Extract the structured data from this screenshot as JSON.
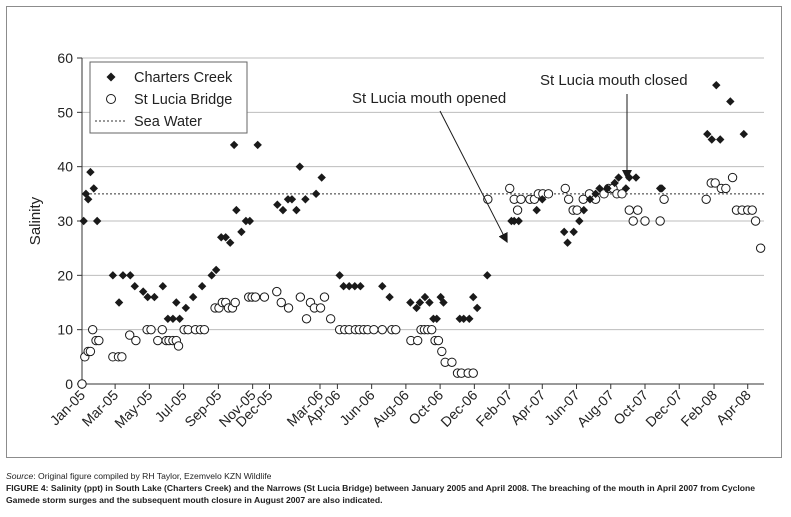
{
  "chart_data": {
    "type": "scatter",
    "ylabel": "Salinity",
    "ylim": [
      0,
      60
    ],
    "yticks": [
      0,
      10,
      20,
      30,
      40,
      50,
      60
    ],
    "xlim": [
      "2005-01-01",
      "2008-04-30"
    ],
    "xticks": [
      "2005-01-01",
      "2005-03-01",
      "2005-05-01",
      "2005-07-01",
      "2005-09-01",
      "2005-11-01",
      "2005-12-01",
      "2006-03-01",
      "2006-04-01",
      "2006-06-01",
      "2006-08-01",
      "2006-10-01",
      "2006-12-01",
      "2007-02-01",
      "2007-04-01",
      "2007-06-01",
      "2007-08-01",
      "2007-10-01",
      "2007-12-01",
      "2008-02-01",
      "2008-04-01"
    ],
    "xticklabels": [
      "Jan-05",
      "Mar-05",
      "May-05",
      "Jul-05",
      "Sep-05",
      "Nov-05",
      "Dec-05",
      "Mar-06",
      "Apr-06",
      "Jun-06",
      "Aug-06",
      "Oct-06",
      "Dec-06",
      "Feb-07",
      "Apr-07",
      "Jun-07",
      "Aug-07",
      "Oct-07",
      "Dec-07",
      "Feb-08",
      "Apr-08"
    ],
    "grid": "horizontal",
    "legend_position": "top-left",
    "series": [
      {
        "name": "Charters Creek",
        "marker": "diamond",
        "color": "#1a1a1a",
        "points": [
          [
            "2005-01-04",
            30
          ],
          [
            "2005-01-08",
            35
          ],
          [
            "2005-01-12",
            34
          ],
          [
            "2005-01-16",
            39
          ],
          [
            "2005-01-22",
            36
          ],
          [
            "2005-01-28",
            30
          ],
          [
            "2005-02-25",
            20
          ],
          [
            "2005-03-08",
            15
          ],
          [
            "2005-03-15",
            20
          ],
          [
            "2005-03-28",
            20
          ],
          [
            "2005-04-05",
            18
          ],
          [
            "2005-04-20",
            17
          ],
          [
            "2005-04-28",
            16
          ],
          [
            "2005-05-10",
            16
          ],
          [
            "2005-05-25",
            18
          ],
          [
            "2005-06-03",
            12
          ],
          [
            "2005-06-12",
            12
          ],
          [
            "2005-06-18",
            15
          ],
          [
            "2005-06-24",
            12
          ],
          [
            "2005-07-05",
            14
          ],
          [
            "2005-07-18",
            16
          ],
          [
            "2005-08-03",
            18
          ],
          [
            "2005-08-20",
            20
          ],
          [
            "2005-08-28",
            21
          ],
          [
            "2005-09-06",
            27
          ],
          [
            "2005-09-14",
            27
          ],
          [
            "2005-09-22",
            26
          ],
          [
            "2005-09-29",
            44
          ],
          [
            "2005-10-03",
            32
          ],
          [
            "2005-10-12",
            28
          ],
          [
            "2005-10-20",
            30
          ],
          [
            "2005-10-27",
            30
          ],
          [
            "2005-11-10",
            44
          ],
          [
            "2005-12-15",
            33
          ],
          [
            "2005-12-25",
            32
          ],
          [
            "2006-01-03",
            34
          ],
          [
            "2006-01-10",
            34
          ],
          [
            "2006-01-18",
            32
          ],
          [
            "2006-01-24",
            40
          ],
          [
            "2006-02-03",
            34
          ],
          [
            "2006-02-22",
            35
          ],
          [
            "2006-03-04",
            38
          ],
          [
            "2006-04-05",
            20
          ],
          [
            "2006-04-12",
            18
          ],
          [
            "2006-04-22",
            18
          ],
          [
            "2006-05-02",
            18
          ],
          [
            "2006-05-12",
            18
          ],
          [
            "2006-06-20",
            18
          ],
          [
            "2006-07-03",
            16
          ],
          [
            "2006-08-09",
            15
          ],
          [
            "2006-08-20",
            14
          ],
          [
            "2006-08-26",
            15
          ],
          [
            "2006-09-04",
            16
          ],
          [
            "2006-09-12",
            15
          ],
          [
            "2006-09-19",
            12
          ],
          [
            "2006-09-25",
            12
          ],
          [
            "2006-10-02",
            16
          ],
          [
            "2006-10-07",
            15
          ],
          [
            "2006-11-05",
            12
          ],
          [
            "2006-11-12",
            12
          ],
          [
            "2006-11-22",
            12
          ],
          [
            "2006-11-29",
            16
          ],
          [
            "2006-12-06",
            14
          ],
          [
            "2006-12-24",
            20
          ],
          [
            "2007-02-05",
            30
          ],
          [
            "2007-02-10",
            30
          ],
          [
            "2007-02-18",
            30
          ],
          [
            "2007-03-22",
            32
          ],
          [
            "2007-04-01",
            34
          ],
          [
            "2007-05-10",
            28
          ],
          [
            "2007-05-16",
            26
          ],
          [
            "2007-05-27",
            28
          ],
          [
            "2007-06-06",
            30
          ],
          [
            "2007-06-14",
            32
          ],
          [
            "2007-06-25",
            34
          ],
          [
            "2007-07-05",
            35
          ],
          [
            "2007-07-12",
            36
          ],
          [
            "2007-07-26",
            36
          ],
          [
            "2007-08-08",
            37
          ],
          [
            "2007-08-15",
            38
          ],
          [
            "2007-08-28",
            36
          ],
          [
            "2007-09-03",
            38
          ],
          [
            "2007-09-15",
            38
          ],
          [
            "2007-10-28",
            36
          ],
          [
            "2007-10-31",
            36
          ],
          [
            "2008-01-20",
            46
          ],
          [
            "2008-01-28",
            45
          ],
          [
            "2008-02-05",
            55
          ],
          [
            "2008-02-12",
            45
          ],
          [
            "2008-03-01",
            52
          ],
          [
            "2008-03-25",
            46
          ]
        ]
      },
      {
        "name": "St Lucia Bridge",
        "marker": "open-circle",
        "color": "#1a1a1a",
        "points": [
          [
            "2005-01-01",
            0
          ],
          [
            "2005-01-06",
            5
          ],
          [
            "2005-01-12",
            6
          ],
          [
            "2005-01-16",
            6
          ],
          [
            "2005-01-20",
            10
          ],
          [
            "2005-01-26",
            8
          ],
          [
            "2005-01-31",
            8
          ],
          [
            "2005-02-25",
            5
          ],
          [
            "2005-03-07",
            5
          ],
          [
            "2005-03-13",
            5
          ],
          [
            "2005-03-27",
            9
          ],
          [
            "2005-04-07",
            8
          ],
          [
            "2005-04-27",
            10
          ],
          [
            "2005-05-04",
            10
          ],
          [
            "2005-05-16",
            8
          ],
          [
            "2005-05-24",
            10
          ],
          [
            "2005-05-31",
            8
          ],
          [
            "2005-06-05",
            8
          ],
          [
            "2005-06-12",
            8
          ],
          [
            "2005-06-18",
            8
          ],
          [
            "2005-06-22",
            7
          ],
          [
            "2005-07-02",
            10
          ],
          [
            "2005-07-09",
            10
          ],
          [
            "2005-07-22",
            10
          ],
          [
            "2005-07-31",
            10
          ],
          [
            "2005-08-07",
            10
          ],
          [
            "2005-08-26",
            14
          ],
          [
            "2005-09-02",
            14
          ],
          [
            "2005-09-08",
            15
          ],
          [
            "2005-09-14",
            15
          ],
          [
            "2005-09-19",
            14
          ],
          [
            "2005-09-26",
            14
          ],
          [
            "2005-10-01",
            15
          ],
          [
            "2005-10-25",
            16
          ],
          [
            "2005-10-31",
            16
          ],
          [
            "2005-11-06",
            16
          ],
          [
            "2005-11-22",
            16
          ],
          [
            "2005-12-14",
            17
          ],
          [
            "2005-12-22",
            15
          ],
          [
            "2006-01-04",
            14
          ],
          [
            "2006-01-25",
            16
          ],
          [
            "2006-02-05",
            12
          ],
          [
            "2006-02-12",
            15
          ],
          [
            "2006-02-19",
            14
          ],
          [
            "2006-03-02",
            14
          ],
          [
            "2006-03-09",
            16
          ],
          [
            "2006-03-20",
            12
          ],
          [
            "2006-04-05",
            10
          ],
          [
            "2006-04-14",
            10
          ],
          [
            "2006-04-22",
            10
          ],
          [
            "2006-05-03",
            10
          ],
          [
            "2006-05-10",
            10
          ],
          [
            "2006-05-18",
            10
          ],
          [
            "2006-05-25",
            10
          ],
          [
            "2006-06-05",
            10
          ],
          [
            "2006-06-20",
            10
          ],
          [
            "2006-07-07",
            10
          ],
          [
            "2006-07-14",
            10
          ],
          [
            "2006-08-10",
            8
          ],
          [
            "2006-08-22",
            8
          ],
          [
            "2006-08-28",
            10
          ],
          [
            "2006-09-03",
            10
          ],
          [
            "2006-09-09",
            10
          ],
          [
            "2006-09-16",
            10
          ],
          [
            "2006-09-22",
            8
          ],
          [
            "2006-09-28",
            8
          ],
          [
            "2006-10-04",
            6
          ],
          [
            "2006-10-10",
            4
          ],
          [
            "2006-10-22",
            4
          ],
          [
            "2006-11-01",
            2
          ],
          [
            "2006-11-08",
            2
          ],
          [
            "2006-11-20",
            2
          ],
          [
            "2006-11-29",
            2
          ],
          [
            "2006-12-25",
            34
          ],
          [
            "2007-02-02",
            36
          ],
          [
            "2007-02-10",
            34
          ],
          [
            "2007-02-16",
            32
          ],
          [
            "2007-02-22",
            34
          ],
          [
            "2007-03-10",
            34
          ],
          [
            "2007-03-18",
            34
          ],
          [
            "2007-03-25",
            35
          ],
          [
            "2007-04-02",
            35
          ],
          [
            "2007-04-12",
            35
          ],
          [
            "2007-05-12",
            36
          ],
          [
            "2007-05-18",
            34
          ],
          [
            "2007-05-26",
            32
          ],
          [
            "2007-06-02",
            32
          ],
          [
            "2007-06-13",
            34
          ],
          [
            "2007-06-24",
            35
          ],
          [
            "2007-07-05",
            34
          ],
          [
            "2007-07-20",
            35
          ],
          [
            "2007-07-28",
            36
          ],
          [
            "2007-08-05",
            36
          ],
          [
            "2007-08-12",
            35
          ],
          [
            "2007-08-21",
            35
          ],
          [
            "2007-09-03",
            32
          ],
          [
            "2007-09-10",
            30
          ],
          [
            "2007-09-18",
            32
          ],
          [
            "2007-10-01",
            30
          ],
          [
            "2007-10-28",
            30
          ],
          [
            "2007-11-04",
            34
          ],
          [
            "2008-01-18",
            34
          ],
          [
            "2008-01-27",
            37
          ],
          [
            "2008-02-03",
            37
          ],
          [
            "2008-02-14",
            36
          ],
          [
            "2008-02-22",
            36
          ],
          [
            "2008-03-05",
            38
          ],
          [
            "2008-03-12",
            32
          ],
          [
            "2008-03-22",
            32
          ],
          [
            "2008-04-01",
            32
          ],
          [
            "2008-04-09",
            32
          ],
          [
            "2008-04-15",
            30
          ],
          [
            "2008-04-24",
            25
          ]
        ]
      },
      {
        "name": "Sea Water",
        "marker": "dotted-line",
        "color": "#333333",
        "value": 35
      }
    ],
    "annotations": [
      {
        "text": "St Lucia mouth opened",
        "arrow_to": [
          "2007-02-01",
          25
        ]
      },
      {
        "text": "St Lucia mouth closed",
        "arrow_to": [
          "2007-08-01",
          37
        ]
      }
    ]
  },
  "caption": {
    "source_label": "Source",
    "source_text": ": Original figure compiled by RH Taylor, Ezemvelo KZN Wildlife",
    "figure_text": "FIGURE 4: Salinity (ppt) in South Lake (Charters Creek) and the Narrows (St Lucia Bridge) between January 2005 and April 2008. The breaching of the mouth in April 2007 from Cyclone Gamede storm surges and the subsequent mouth closure in August 2007 are also indicated."
  }
}
